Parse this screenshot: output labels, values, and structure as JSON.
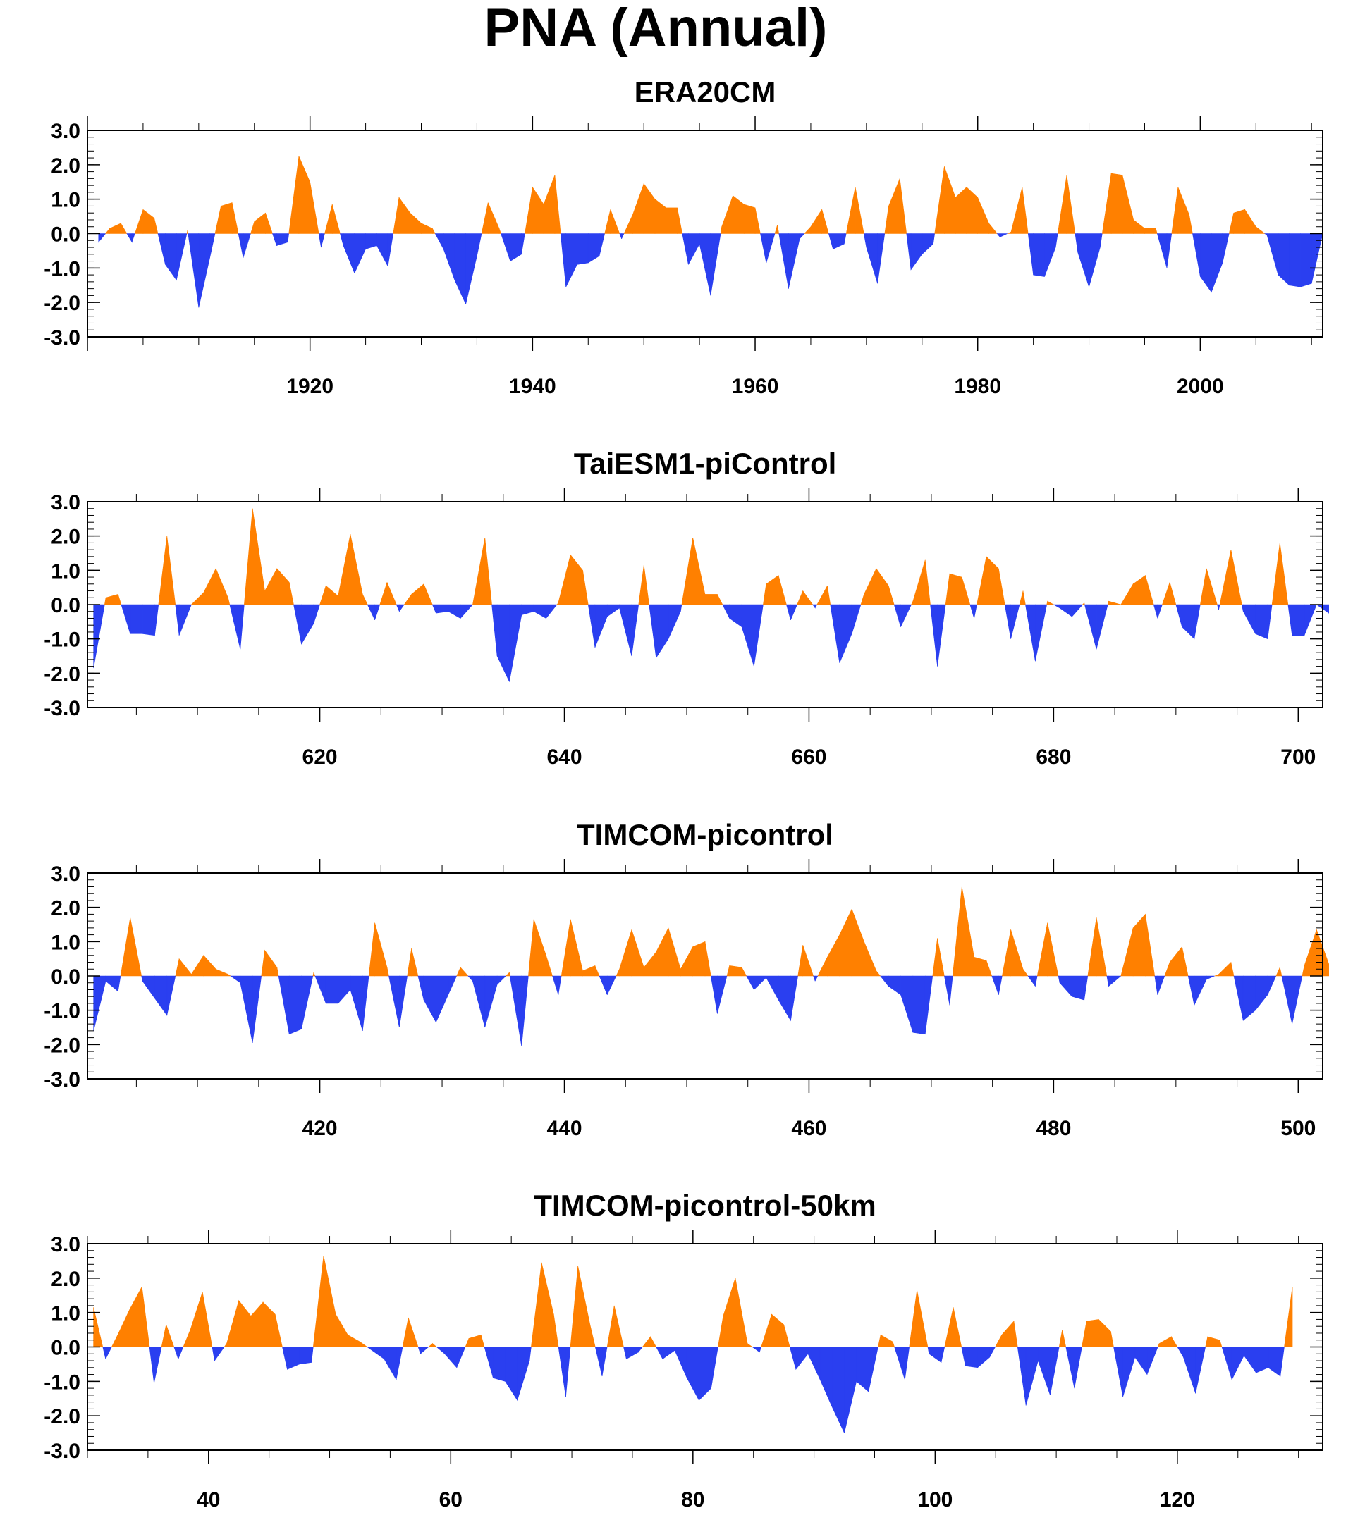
{
  "title": "PNA (Annual)",
  "colors": {
    "positive": "#ff8000",
    "negative": "#2a3ff0",
    "axis": "#000000"
  },
  "chart_data": [
    {
      "type": "area",
      "title": "ERA20CM",
      "ylim": [
        -3.0,
        3.0
      ],
      "yticks": [
        "3.0",
        "2.0",
        "1.0",
        "0.0",
        "-1.0",
        "-2.0",
        "-3.0"
      ],
      "xlim": [
        1900,
        2011
      ],
      "xtick_labels": [
        1920,
        1940,
        1960,
        1980,
        2000
      ],
      "x_start": 1901,
      "values": [
        -0.25,
        0.15,
        0.3,
        -0.25,
        0.7,
        0.45,
        -0.9,
        -1.35,
        0.1,
        -2.15,
        -0.7,
        0.8,
        0.9,
        -0.7,
        0.35,
        0.6,
        -0.35,
        -0.25,
        2.25,
        1.5,
        -0.4,
        0.85,
        -0.35,
        -1.15,
        -0.45,
        -0.35,
        -0.95,
        1.05,
        0.6,
        0.3,
        0.15,
        -0.45,
        -1.35,
        -2.05,
        -0.65,
        0.9,
        0.15,
        -0.8,
        -0.6,
        1.35,
        0.85,
        1.7,
        -1.55,
        -0.9,
        -0.85,
        -0.65,
        0.7,
        -0.15,
        0.55,
        1.45,
        1.0,
        0.75,
        0.75,
        -0.9,
        -0.3,
        -1.8,
        0.2,
        1.1,
        0.85,
        0.75,
        -0.85,
        0.25,
        -1.6,
        -0.15,
        0.2,
        0.7,
        -0.45,
        -0.3,
        1.35,
        -0.4,
        -1.45,
        0.8,
        1.6,
        -1.05,
        -0.6,
        -0.3,
        1.95,
        1.05,
        1.35,
        1.05,
        0.3,
        -0.1,
        0.05,
        1.35,
        -1.2,
        -1.25,
        -0.4,
        1.7,
        -0.55,
        -1.55,
        -0.4,
        1.75,
        1.7,
        0.4,
        0.15,
        0.15,
        -1.0,
        1.35,
        0.55,
        -1.25,
        -1.7,
        -0.85,
        0.6,
        0.7,
        0.2,
        -0.05,
        -1.2,
        -1.5,
        -1.55,
        -1.45,
        0.0
      ]
    },
    {
      "type": "area",
      "title": "TaiESM1-piControl",
      "ylim": [
        -3.0,
        3.0
      ],
      "yticks": [
        "3.0",
        "2.0",
        "1.0",
        "0.0",
        "-1.0",
        "-2.0",
        "-3.0"
      ],
      "xlim": [
        601,
        702
      ],
      "xtick_labels": [
        620,
        640,
        660,
        680,
        700
      ],
      "x_start": 601.5,
      "values": [
        -1.85,
        0.2,
        0.3,
        -0.85,
        -0.85,
        -0.9,
        2.0,
        -0.9,
        0.0,
        0.35,
        1.05,
        0.2,
        -1.3,
        2.8,
        0.4,
        1.05,
        0.65,
        -1.15,
        -0.55,
        0.55,
        0.25,
        2.05,
        0.3,
        -0.45,
        0.65,
        -0.2,
        0.3,
        0.6,
        -0.25,
        -0.2,
        -0.4,
        0.0,
        1.95,
        -1.5,
        -2.25,
        -0.3,
        -0.2,
        -0.4,
        0.05,
        1.45,
        1.0,
        -1.25,
        -0.35,
        -0.1,
        -1.5,
        1.15,
        -1.55,
        -1.0,
        -0.2,
        1.95,
        0.3,
        0.3,
        -0.4,
        -0.65,
        -1.8,
        0.6,
        0.85,
        -0.45,
        0.4,
        -0.1,
        0.55,
        -1.7,
        -0.85,
        0.3,
        1.05,
        0.55,
        -0.65,
        0.1,
        1.3,
        -1.8,
        0.9,
        0.8,
        -0.4,
        1.4,
        1.05,
        -1.0,
        0.4,
        -1.65,
        0.1,
        -0.1,
        -0.35,
        0.05,
        -1.3,
        0.1,
        0.0,
        0.6,
        0.85,
        -0.4,
        0.65,
        -0.65,
        -1.0,
        1.05,
        -0.15,
        1.6,
        -0.2,
        -0.85,
        -1.0,
        1.8,
        -0.9,
        -0.9,
        0.0,
        -0.25
      ]
    },
    {
      "type": "area",
      "title": "TIMCOM-picontrol",
      "ylim": [
        -3.0,
        3.0
      ],
      "yticks": [
        "3.0",
        "2.0",
        "1.0",
        "0.0",
        "-1.0",
        "-2.0",
        "-3.0"
      ],
      "xlim": [
        401,
        502
      ],
      "xtick_labels": [
        420,
        440,
        460,
        480,
        500
      ],
      "x_start": 401.5,
      "values": [
        -1.6,
        -0.15,
        -0.45,
        1.7,
        -0.15,
        -0.65,
        -1.15,
        0.5,
        0.05,
        0.6,
        0.2,
        0.05,
        -0.2,
        -1.95,
        0.75,
        0.25,
        -1.7,
        -1.55,
        0.1,
        -0.8,
        -0.8,
        -0.4,
        -1.6,
        1.55,
        0.25,
        -1.5,
        0.8,
        -0.7,
        -1.35,
        -0.55,
        0.25,
        -0.15,
        -1.5,
        -0.25,
        0.1,
        -2.05,
        1.65,
        0.6,
        -0.55,
        1.65,
        0.15,
        0.3,
        -0.55,
        0.2,
        1.35,
        0.25,
        0.7,
        1.4,
        0.2,
        0.85,
        1.0,
        -1.1,
        0.3,
        0.25,
        -0.4,
        -0.05,
        -0.7,
        -1.3,
        0.9,
        -0.15,
        0.55,
        1.2,
        1.95,
        1.0,
        0.15,
        -0.3,
        -0.55,
        -1.65,
        -1.7,
        1.1,
        -0.85,
        2.6,
        0.55,
        0.45,
        -0.55,
        1.35,
        0.2,
        -0.3,
        1.55,
        -0.2,
        -0.6,
        -0.7,
        1.7,
        -0.3,
        0.0,
        1.4,
        1.8,
        -0.55,
        0.4,
        0.85,
        -0.85,
        -0.1,
        0.05,
        0.4,
        -1.3,
        -1.0,
        -0.55,
        0.25,
        -1.4,
        0.3,
        1.35,
        0.35
      ]
    },
    {
      "type": "area",
      "title": "TIMCOM-picontrol-50km",
      "ylim": [
        -3.0,
        3.0
      ],
      "yticks": [
        "3.0",
        "2.0",
        "1.0",
        "0.0",
        "-1.0",
        "-2.0",
        "-3.0"
      ],
      "xlim": [
        30,
        132
      ],
      "xtick_labels": [
        40,
        60,
        80,
        100,
        120
      ],
      "x_start": 30.5,
      "values": [
        1.15,
        -0.35,
        0.35,
        1.1,
        1.75,
        -1.05,
        0.65,
        -0.35,
        0.5,
        1.6,
        -0.4,
        0.1,
        1.35,
        0.9,
        1.3,
        0.95,
        -0.65,
        -0.5,
        -0.45,
        2.65,
        0.95,
        0.35,
        0.15,
        -0.1,
        -0.35,
        -0.95,
        0.85,
        -0.2,
        0.1,
        -0.2,
        -0.6,
        0.25,
        0.35,
        -0.9,
        -1.0,
        -1.55,
        -0.4,
        2.45,
        0.95,
        -1.45,
        2.35,
        0.65,
        -0.85,
        1.2,
        -0.35,
        -0.15,
        0.3,
        -0.35,
        -0.1,
        -0.9,
        -1.55,
        -1.2,
        0.9,
        2.0,
        0.1,
        -0.15,
        0.95,
        0.65,
        -0.65,
        -0.2,
        -0.95,
        -1.75,
        -2.5,
        -1.0,
        -1.3,
        0.35,
        0.15,
        -0.95,
        1.65,
        -0.2,
        -0.45,
        1.15,
        -0.55,
        -0.6,
        -0.3,
        0.35,
        0.75,
        -1.7,
        -0.4,
        -1.4,
        0.5,
        -1.2,
        0.75,
        0.8,
        0.45,
        -1.45,
        -0.3,
        -0.8,
        0.1,
        0.3,
        -0.3,
        -1.35,
        0.3,
        0.2,
        -0.95,
        -0.25,
        -0.75,
        -0.6,
        -0.85,
        1.75
      ]
    }
  ]
}
